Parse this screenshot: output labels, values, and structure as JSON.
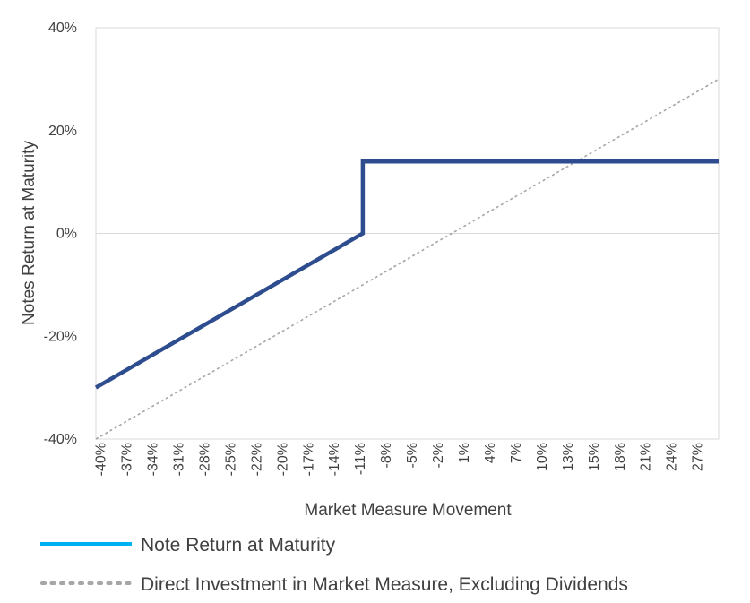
{
  "chart_data": {
    "type": "line",
    "title": "",
    "xlabel": "Market Measure Movement",
    "ylabel": "Notes Return at Maturity",
    "x_tick_labels": [
      "-40%",
      "-37%",
      "-34%",
      "-31%",
      "-28%",
      "-25%",
      "-22%",
      "-20%",
      "-17%",
      "-14%",
      "-11%",
      "-8%",
      "-5%",
      "-2%",
      "1%",
      "4%",
      "7%",
      "10%",
      "13%",
      "15%",
      "18%",
      "21%",
      "24%",
      "27%"
    ],
    "y_tick_labels": [
      "40%",
      "20%",
      "0%",
      "-20%",
      "-40%"
    ],
    "xlim": [
      -40,
      30
    ],
    "ylim": [
      -40,
      40
    ],
    "y_ticks": [
      40,
      20,
      0,
      -20,
      -40
    ],
    "grid": "horizontal line at 0% only",
    "series": [
      {
        "name": "Note Return at Maturity",
        "color": "#2e4d8f",
        "style": "solid",
        "x": [
          -40,
          -10,
          -10,
          30
        ],
        "y": [
          -30,
          0,
          14,
          14
        ]
      },
      {
        "name": "Direct Investment in Market Measure, Excluding Dividends",
        "color": "#a6a6a6",
        "style": "dotted",
        "x": [
          -40,
          30
        ],
        "y": [
          -40,
          30
        ]
      }
    ],
    "legend": [
      {
        "label": "Note Return at Maturity",
        "color": "#00b0f0",
        "style": "solid"
      },
      {
        "label": "Direct Investment in Market Measure, Excluding Dividends",
        "color": "#a6a6a6",
        "style": "dotted"
      }
    ],
    "legend_placement": "bottom"
  }
}
